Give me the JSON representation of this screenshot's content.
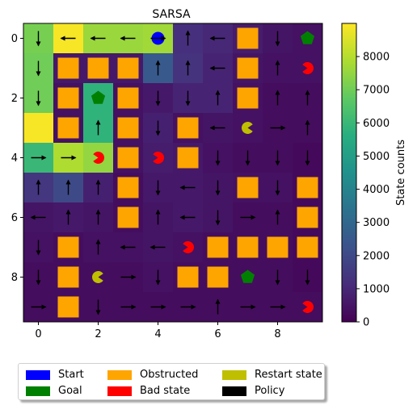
{
  "chart_data": {
    "type": "heatmap",
    "title": "SARSA",
    "colorbar_label": "State counts",
    "colorbar_ticks": [
      0,
      1000,
      2000,
      3000,
      4000,
      5000,
      6000,
      7000,
      8000
    ],
    "colorbar_range": [
      0,
      9000
    ],
    "colormap": "viridis",
    "x_ticks": [
      0,
      2,
      4,
      6,
      8
    ],
    "y_ticks": [
      0,
      2,
      4,
      6,
      8
    ],
    "grid_size": [
      10,
      10
    ],
    "state_counts": [
      [
        7100,
        8900,
        7600,
        7600,
        7700,
        1200,
        1000,
        700,
        500,
        400
      ],
      [
        7000,
        600,
        600,
        600,
        2500,
        1300,
        900,
        500,
        400,
        400
      ],
      [
        7000,
        400,
        5800,
        400,
        600,
        900,
        900,
        400,
        300,
        300
      ],
      [
        8900,
        400,
        5800,
        400,
        800,
        400,
        500,
        400,
        300,
        300
      ],
      [
        6000,
        7900,
        7500,
        400,
        700,
        600,
        400,
        300,
        300,
        200
      ],
      [
        1400,
        2000,
        800,
        300,
        600,
        600,
        500,
        400,
        400,
        200
      ],
      [
        500,
        600,
        500,
        300,
        500,
        600,
        500,
        300,
        300,
        200
      ],
      [
        400,
        300,
        400,
        400,
        500,
        400,
        300,
        300,
        300,
        200
      ],
      [
        300,
        300,
        300,
        300,
        400,
        300,
        300,
        300,
        300,
        200
      ],
      [
        300,
        300,
        300,
        300,
        300,
        300,
        300,
        300,
        300,
        300
      ]
    ],
    "policy": [
      [
        "down",
        "left",
        "left",
        "left",
        "right",
        "up",
        "left",
        "",
        "down",
        ""
      ],
      [
        "down",
        "",
        "",
        "",
        "up",
        "up",
        "left",
        "",
        "up",
        ""
      ],
      [
        "down",
        "",
        "",
        "",
        "down",
        "down",
        "up",
        "",
        "up",
        "up"
      ],
      [
        "",
        "",
        "up",
        "",
        "down",
        "",
        "left",
        "",
        "right",
        "up"
      ],
      [
        "right",
        "right",
        "",
        "",
        "",
        "",
        "down",
        "down",
        "down",
        "down"
      ],
      [
        "up",
        "up",
        "up",
        "",
        "down",
        "left",
        "down",
        "",
        "down",
        ""
      ],
      [
        "left",
        "up",
        "up",
        "",
        "up",
        "left",
        "down",
        "right",
        "up",
        ""
      ],
      [
        "down",
        "",
        "up",
        "left",
        "left",
        "",
        "",
        "",
        "",
        ""
      ],
      [
        "down",
        "",
        "",
        "right",
        "down",
        "",
        "",
        "",
        "down",
        "down"
      ],
      [
        "right",
        "",
        "down",
        "right",
        "right",
        "right",
        "up",
        "right",
        "right",
        ""
      ]
    ],
    "obstructed": [
      [
        0,
        7
      ],
      [
        1,
        1
      ],
      [
        1,
        2
      ],
      [
        1,
        3
      ],
      [
        1,
        7
      ],
      [
        2,
        1
      ],
      [
        2,
        3
      ],
      [
        2,
        7
      ],
      [
        3,
        1
      ],
      [
        3,
        3
      ],
      [
        3,
        5
      ],
      [
        4,
        3
      ],
      [
        4,
        5
      ],
      [
        5,
        3
      ],
      [
        5,
        7
      ],
      [
        5,
        9
      ],
      [
        6,
        3
      ],
      [
        6,
        9
      ],
      [
        7,
        1
      ],
      [
        7,
        6
      ],
      [
        7,
        7
      ],
      [
        7,
        8
      ],
      [
        7,
        9
      ],
      [
        8,
        1
      ],
      [
        8,
        5
      ],
      [
        8,
        6
      ],
      [
        9,
        1
      ]
    ],
    "start": [
      [
        0,
        4
      ]
    ],
    "goal": [
      [
        0,
        9
      ],
      [
        2,
        2
      ],
      [
        8,
        7
      ]
    ],
    "bad_state": [
      [
        1,
        9
      ],
      [
        4,
        2
      ],
      [
        4,
        4
      ],
      [
        7,
        5
      ],
      [
        9,
        9
      ]
    ],
    "restart_state": [
      [
        3,
        7
      ],
      [
        8,
        2
      ]
    ],
    "marker_colors": {
      "start": "#0000ff",
      "goal": "#008000",
      "obstructed": "#ffa500",
      "bad_state": "#ff0000",
      "restart_state": "#bfbf00",
      "policy": "#000000"
    },
    "legend": [
      {
        "label": "Start",
        "color": "#0000ff"
      },
      {
        "label": "Obstructed",
        "color": "#ffa500"
      },
      {
        "label": "Restart state",
        "color": "#bfbf00"
      },
      {
        "label": "Goal",
        "color": "#008000"
      },
      {
        "label": "Bad state",
        "color": "#ff0000"
      },
      {
        "label": "Policy",
        "color": "#000000"
      }
    ],
    "legend_placement": "bottom"
  }
}
